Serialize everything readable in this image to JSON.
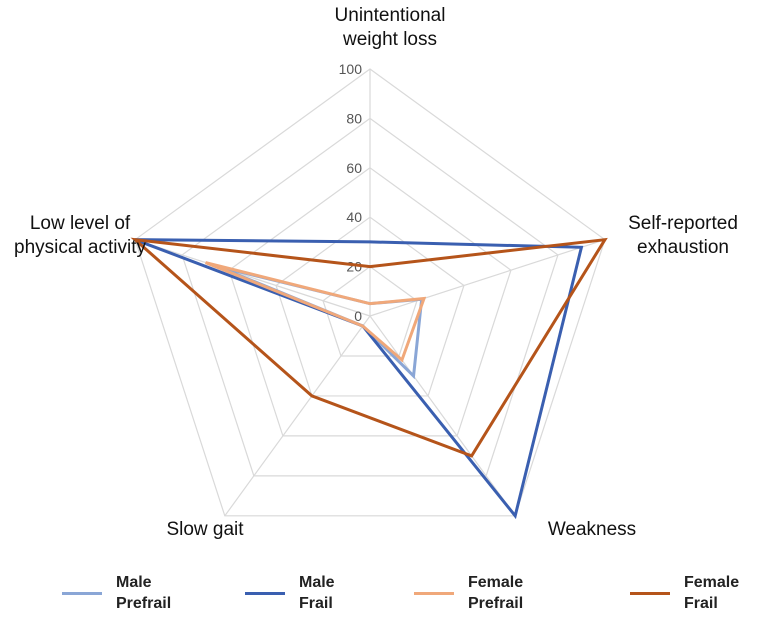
{
  "chart_data": {
    "type": "radar",
    "title": "",
    "axes": [
      "Unintentional\nweight loss",
      "Self-reported\nexhaustion",
      "Weakness",
      "Slow gait",
      "Low level of\nphysical activity"
    ],
    "range": [
      0,
      100
    ],
    "ticks": [
      "0",
      "20",
      "40",
      "60",
      "80",
      "100"
    ],
    "series": [
      {
        "name": "Male\nPrefrail",
        "color": "#8aa6d6",
        "values": [
          5,
          22,
          30,
          5,
          65
        ]
      },
      {
        "name": "Male\nFrail",
        "color": "#3a5fb0",
        "values": [
          30,
          90,
          100,
          5,
          100
        ]
      },
      {
        "name": "Female\nPrefrail",
        "color": "#f0a87a",
        "values": [
          5,
          23,
          22,
          5,
          70
        ]
      },
      {
        "name": "Female\nFrail",
        "color": "#b5541a",
        "values": [
          20,
          100,
          70,
          40,
          100
        ]
      }
    ],
    "legend_position": "bottom"
  }
}
